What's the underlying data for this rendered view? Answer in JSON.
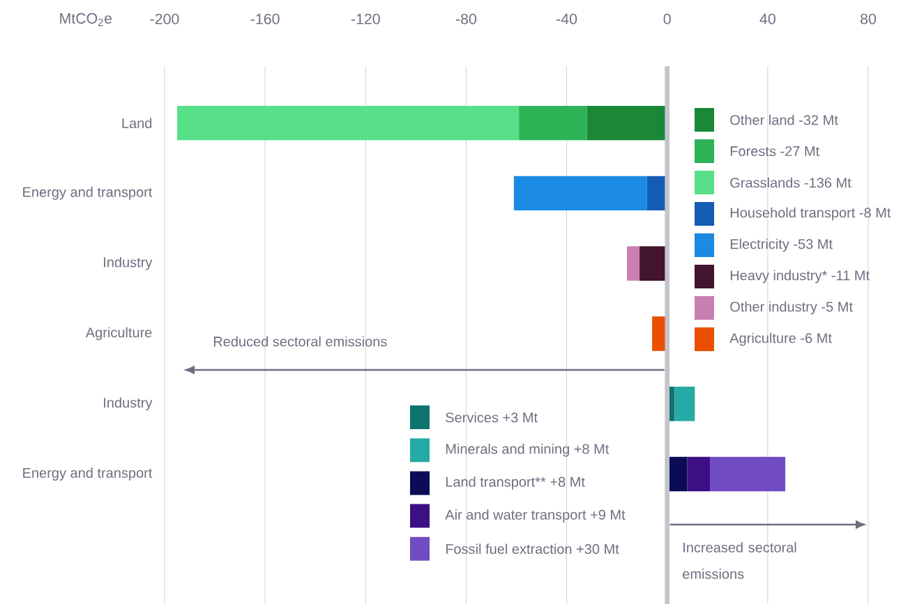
{
  "chart_data": {
    "type": "bar",
    "orientation": "horizontal",
    "stacked": true,
    "xlabel": "MtCO$_{2}$e",
    "categories": [
      "Land",
      "Energy and transport",
      "Industry",
      "Agriculture",
      "Industry",
      "Energy and transport"
    ],
    "series": [
      {
        "name": "Other land -32 Mt",
        "color": "#1a8837",
        "values": [
          -32,
          null,
          null,
          null,
          null,
          null
        ]
      },
      {
        "name": "Forests -27 Mt",
        "color": "#2db355",
        "values": [
          -27,
          null,
          null,
          null,
          null,
          null
        ]
      },
      {
        "name": "Grasslands -136 Mt",
        "color": "#57e087",
        "values": [
          -136,
          null,
          null,
          null,
          null,
          null
        ]
      },
      {
        "name": "Household transport -8 Mt",
        "color": "#155cb4",
        "values": [
          null,
          -8,
          null,
          null,
          null,
          null
        ]
      },
      {
        "name": "Electricity -53 Mt",
        "color": "#1a8ae2",
        "values": [
          null,
          -53,
          null,
          null,
          null,
          null
        ]
      },
      {
        "name": "Heavy industry* -11 Mt",
        "color": "#42142d",
        "values": [
          null,
          null,
          -11,
          null,
          null,
          null
        ]
      },
      {
        "name": "Other industry -5 Mt",
        "color": "#c97fb1",
        "values": [
          null,
          null,
          -5,
          null,
          null,
          null
        ]
      },
      {
        "name": "Agriculture -6 Mt",
        "color": "#ea4f00",
        "values": [
          null,
          null,
          null,
          -6,
          null,
          null
        ]
      },
      {
        "name": "Services +3 Mt",
        "color": "#0e7470",
        "values": [
          null,
          null,
          null,
          null,
          3,
          null
        ]
      },
      {
        "name": "Minerals and mining +8 Mt",
        "color": "#26aaa5",
        "values": [
          null,
          null,
          null,
          null,
          8,
          null
        ]
      },
      {
        "name": "Land transport** +8 Mt",
        "color": "#0b0b56",
        "values": [
          null,
          null,
          null,
          null,
          null,
          8
        ]
      },
      {
        "name": "Air and water transport +9 Mt",
        "color": "#3d0f85",
        "values": [
          null,
          null,
          null,
          null,
          null,
          9
        ]
      },
      {
        "name": "Fossil fuel extraction +30 Mt",
        "color": "#714bc2",
        "values": [
          null,
          null,
          null,
          null,
          null,
          30
        ]
      }
    ],
    "xlim": [
      -200,
      80
    ],
    "xticks": [
      -200,
      -160,
      -120,
      -80,
      -40,
      0,
      40,
      80
    ],
    "grid": "x",
    "legend": "right",
    "ref_lines": [
      {
        "axis": "x",
        "value": 0,
        "color": "#c4c4cc"
      }
    ],
    "annotations": [
      "Reduced sectoral emissions",
      "Increased sectoral emissions"
    ]
  }
}
